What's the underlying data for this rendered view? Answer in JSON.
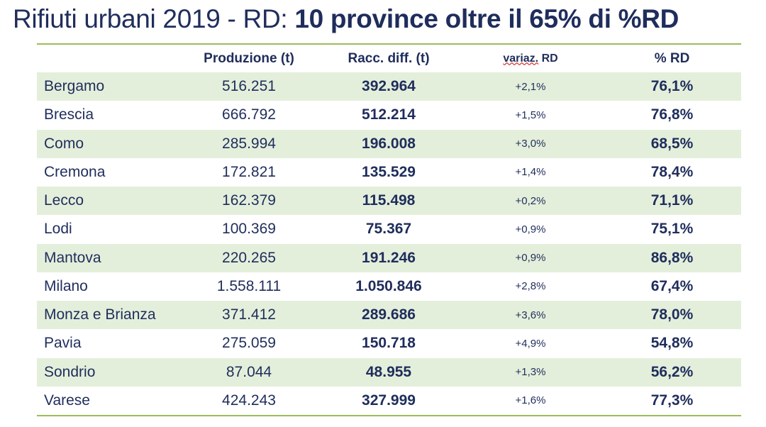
{
  "title": {
    "light": "Rifiuti urbani 2019 - RD: ",
    "bold": "10 province oltre il 65% di %RD"
  },
  "headers": [
    "",
    "Produzione (t)",
    "Racc. diff.  (t)",
    "variaz.",
    "RD",
    "% RD"
  ],
  "rows": [
    [
      "Bergamo",
      "516.251",
      "392.964",
      "+2,1%",
      "76,1%"
    ],
    [
      "Brescia",
      "666.792",
      "512.214",
      "+1,5%",
      "76,8%"
    ],
    [
      "Como",
      "285.994",
      "196.008",
      "+3,0%",
      "68,5%"
    ],
    [
      "Cremona",
      "172.821",
      "135.529",
      "+1,4%",
      "78,4%"
    ],
    [
      "Lecco",
      "162.379",
      "115.498",
      "+0,2%",
      "71,1%"
    ],
    [
      "Lodi",
      "100.369",
      "75.367",
      "+0,9%",
      "75,1%"
    ],
    [
      "Mantova",
      "220.265",
      "191.246",
      "+0,9%",
      "86,8%"
    ],
    [
      "Milano",
      "1.558.111",
      "1.050.846",
      "+2,8%",
      "67,4%"
    ],
    [
      "Monza e Brianza",
      "371.412",
      "289.686",
      "+3,6%",
      "78,0%"
    ],
    [
      "Pavia",
      "275.059",
      "150.718",
      "+4,9%",
      "54,8%"
    ],
    [
      "Sondrio",
      "87.044",
      "48.955",
      "+1,3%",
      "56,2%"
    ],
    [
      "Varese",
      "424.243",
      "327.999",
      "+1,6%",
      "77,3%"
    ]
  ],
  "colors": {
    "text": "#1f2d5c",
    "band": "#e4efdb",
    "rule": "#9bbb59"
  }
}
